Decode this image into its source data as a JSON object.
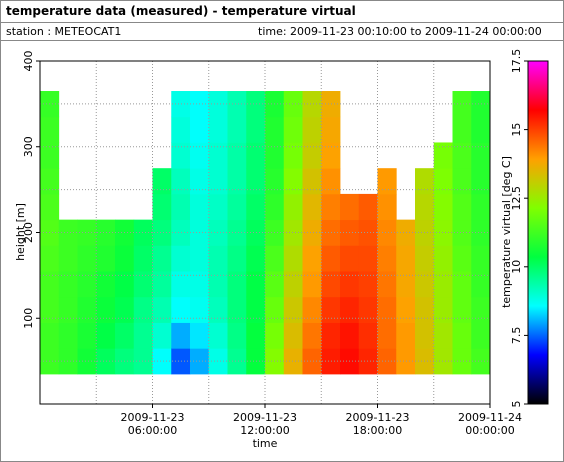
{
  "chart_data": {
    "type": "heatmap",
    "title": "temperature data (measured) - temperature virtual",
    "station_label": "station : METEOCAT1",
    "time_range": "time: 2009-11-23 00:10:00 to 2009-11-24 00:00:00",
    "x_label": "time",
    "y_label": "height [m]",
    "colorbar_label": "temperature virtual [deg C]",
    "xlim": [
      "2009-11-23 00:00:00",
      "2009-11-24 00:00:00"
    ],
    "xticks": [
      "2009-11-23 06:00:00",
      "2009-11-23 12:00:00",
      "2009-11-23 18:00:00",
      "2009-11-24 00:00:00"
    ],
    "xgrid": [
      "2009-11-23 03:00:00",
      "2009-11-23 06:00:00",
      "2009-11-23 09:00:00",
      "2009-11-23 12:00:00",
      "2009-11-23 15:00:00",
      "2009-11-23 18:00:00",
      "2009-11-23 21:00:00"
    ],
    "ylim": [
      0,
      400
    ],
    "yticks": [
      100,
      200,
      300,
      400
    ],
    "ygrid": [
      50,
      100,
      150,
      200,
      250,
      300,
      350
    ],
    "zlim": [
      5,
      17.5
    ],
    "zticks": [
      5,
      7.5,
      10,
      12.5,
      15,
      17.5
    ],
    "colorscale": [
      "#000000",
      "#0000ff",
      "#00ffff",
      "#00ff40",
      "#80ff00",
      "#ffa000",
      "#ff0000",
      "#ff00ff"
    ],
    "x": [
      "2009-11-23 00:00:00",
      "2009-11-23 01:00:00",
      "2009-11-23 02:00:00",
      "2009-11-23 03:00:00",
      "2009-11-23 04:00:00",
      "2009-11-23 05:00:00",
      "2009-11-23 06:00:00",
      "2009-11-23 07:00:00",
      "2009-11-23 08:00:00",
      "2009-11-23 09:00:00",
      "2009-11-23 10:00:00",
      "2009-11-23 11:00:00",
      "2009-11-23 12:00:00",
      "2009-11-23 13:00:00",
      "2009-11-23 14:00:00",
      "2009-11-23 15:00:00",
      "2009-11-23 16:00:00",
      "2009-11-23 17:00:00",
      "2009-11-23 18:00:00",
      "2009-11-23 19:00:00",
      "2009-11-23 20:00:00",
      "2009-11-23 21:00:00",
      "2009-11-23 22:00:00",
      "2009-11-23 23:00:00",
      "2009-11-24 00:00:00"
    ],
    "y": [
      35,
      65,
      95,
      125,
      155,
      185,
      215,
      245,
      275,
      305,
      335,
      365
    ],
    "values": [
      [
        11.2,
        11.2,
        11.3,
        11.3,
        11.4,
        11.5,
        11.4,
        11.3,
        11.2,
        11.2,
        11.1
      ],
      [
        11.0,
        11.0,
        11.1,
        11.1,
        11.2,
        11.2,
        null,
        null,
        null,
        null,
        null
      ],
      [
        10.6,
        10.7,
        10.8,
        10.9,
        11.0,
        11.1,
        null,
        null,
        null,
        null,
        null
      ],
      [
        10.1,
        10.3,
        10.5,
        10.6,
        10.8,
        10.9,
        null,
        null,
        null,
        null,
        null
      ],
      [
        9.8,
        10.0,
        10.2,
        10.3,
        10.5,
        10.6,
        null,
        null,
        null,
        null,
        null
      ],
      [
        9.6,
        9.6,
        9.7,
        9.9,
        10.0,
        10.1,
        null,
        null,
        null,
        null,
        null
      ],
      [
        8.6,
        9.0,
        9.3,
        9.5,
        9.6,
        9.8,
        9.9,
        10.0,
        null,
        null,
        null
      ],
      [
        7.4,
        8.0,
        8.6,
        8.8,
        9.0,
        9.2,
        9.3,
        9.2,
        9.0,
        8.9,
        8.8
      ],
      [
        8.0,
        8.4,
        8.7,
        8.8,
        8.9,
        8.9,
        8.9,
        8.8,
        8.7,
        8.6,
        8.6
      ],
      [
        8.8,
        9.0,
        9.2,
        9.3,
        9.3,
        9.2,
        9.1,
        9.0,
        9.0,
        8.9,
        8.9
      ],
      [
        9.6,
        9.7,
        9.8,
        9.8,
        9.7,
        9.6,
        9.5,
        9.4,
        9.4,
        9.3,
        9.3
      ],
      [
        10.4,
        10.4,
        10.3,
        10.3,
        10.2,
        10.1,
        10.0,
        9.9,
        9.9,
        9.8,
        9.8
      ],
      [
        12.2,
        12.0,
        11.8,
        11.6,
        11.4,
        11.2,
        11.0,
        10.9,
        10.8,
        10.8,
        10.7
      ],
      [
        13.6,
        13.4,
        13.2,
        13.0,
        12.8,
        12.6,
        12.4,
        12.2,
        12.0,
        11.9,
        11.8
      ],
      [
        14.6,
        14.4,
        14.2,
        14.0,
        13.9,
        13.7,
        13.5,
        13.3,
        13.1,
        13.0,
        12.9
      ],
      [
        15.4,
        15.3,
        15.1,
        14.9,
        14.7,
        14.5,
        14.3,
        14.1,
        13.9,
        13.8,
        13.7
      ],
      [
        15.6,
        15.5,
        15.3,
        15.1,
        14.9,
        14.7,
        14.5,
        null,
        null,
        null,
        null
      ],
      [
        15.3,
        15.2,
        15.1,
        15.0,
        14.9,
        14.8,
        14.7,
        null,
        null,
        null,
        null
      ],
      [
        14.6,
        14.5,
        14.5,
        14.4,
        14.3,
        14.2,
        14.1,
        14.0,
        null,
        null,
        null
      ],
      [
        14.0,
        14.0,
        13.9,
        13.8,
        13.8,
        13.7,
        null,
        null,
        null,
        null,
        null
      ],
      [
        13.4,
        13.3,
        13.3,
        13.2,
        13.1,
        13.0,
        12.9,
        12.8,
        null,
        null,
        null
      ],
      [
        12.6,
        12.6,
        12.5,
        12.5,
        12.4,
        12.3,
        12.2,
        12.1,
        12.0,
        null,
        null
      ],
      [
        11.8,
        11.8,
        11.7,
        11.7,
        11.6,
        11.5,
        11.5,
        11.4,
        11.4,
        11.3,
        11.3
      ],
      [
        11.3,
        11.2,
        11.2,
        11.1,
        11.1,
        11.0,
        11.0,
        10.9,
        10.9,
        10.8,
        10.8
      ]
    ]
  }
}
